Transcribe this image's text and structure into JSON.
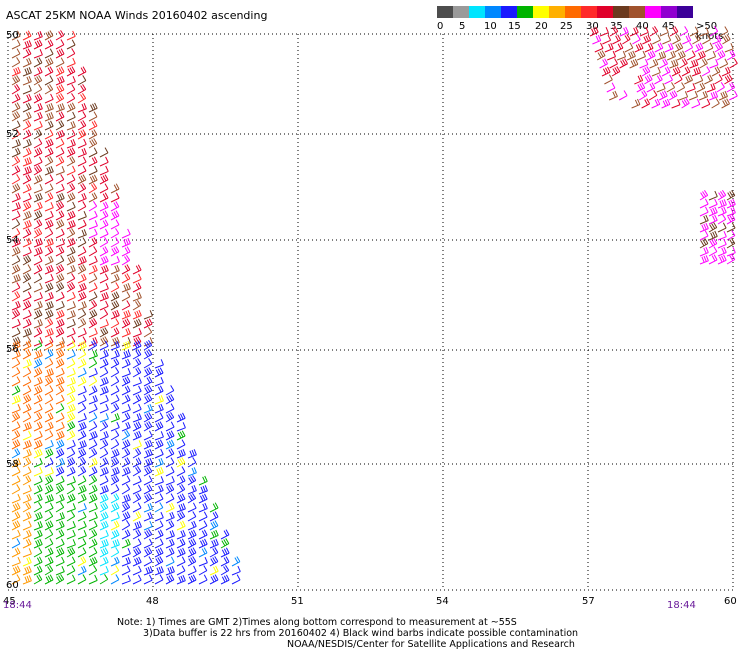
{
  "title": "ASCAT 25KM NOAA Winds 20160402 ascending",
  "legend": {
    "colors": [
      "#4d4d4d",
      "#9a9a9a",
      "#00e5ff",
      "#0088ff",
      "#1a1aff",
      "#00b400",
      "#ffff00",
      "#ffb000",
      "#ff6a00",
      "#ff2a2a",
      "#e0002a",
      "#6b3a1f",
      "#a0522d",
      "#ff00ff",
      "#9000d0",
      "#3c0099"
    ],
    "labels": [
      "0",
      "5",
      "10",
      "15",
      "20",
      "25",
      "30",
      "35",
      "40",
      "45",
      ">50 knots"
    ]
  },
  "axes": {
    "x_labels": [
      "45",
      "48",
      "51",
      "54",
      "57",
      "60"
    ],
    "y_labels": [
      "50",
      "52",
      "54",
      "56",
      "58",
      "60"
    ]
  },
  "times": {
    "left": "18:44",
    "right": "18:44"
  },
  "notes": {
    "line1": "Note: 1) Times are GMT 2)Times along bottom correspond to measurement at ~55S",
    "line2": "3)Data buffer is 22 hrs from 20160402 4) Black wind barbs indicate possible contamination",
    "line3": "NOAA/NESDIS/Center for Satellite Applications and Research"
  }
}
